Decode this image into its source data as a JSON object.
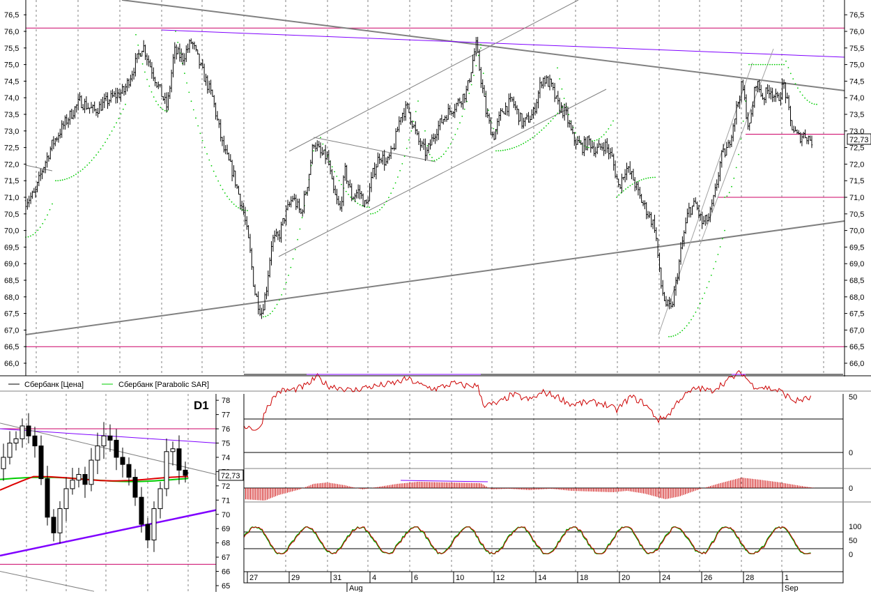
{
  "window": {
    "timeframe": "D1",
    "current_price_label": "72,73",
    "mini_price_label": "72,73"
  },
  "legend": [
    {
      "label": "Сбербанк [Цена]",
      "color": "#000000"
    },
    {
      "label": "Сбербанк [Parabolic SAR]",
      "color": "#00cc00"
    }
  ],
  "colors": {
    "grid": "#808080",
    "magenta_line": "#cc0066",
    "purple_line": "#7f00ff",
    "trend_line": "#808080",
    "sar": "#00cc00",
    "rsi": "#cc0000",
    "macd": "#cc0000",
    "stoch_k": "#00aa00",
    "stoch_d": "#cc0000",
    "ma_green": "#00cc00",
    "ma_red": "#dd0000"
  },
  "chart_data": [
    {
      "type": "candlestick",
      "title": "",
      "ylabel": "",
      "ylim": [
        65.5,
        77.0
      ],
      "y_ticks": [
        "66,0",
        "66,5",
        "67,0",
        "67,5",
        "68,0",
        "68,5",
        "69,0",
        "69,5",
        "70,0",
        "70,5",
        "71,0",
        "71,5",
        "72,0",
        "72,5",
        "73,0",
        "73,5",
        "74,0",
        "74,5",
        "75,0",
        "75,5",
        "76,0",
        "76,5"
      ],
      "horizontal_levels": [
        76.1,
        66.5
      ],
      "series": [
        {
          "name": "Сбербанк [Цена]",
          "x": [
            "27",
            "28",
            "29",
            "30",
            "31",
            "3",
            "4",
            "5",
            "6",
            "7",
            "10",
            "11",
            "12",
            "13",
            "14",
            "17",
            "18",
            "19",
            "20",
            "21",
            "24",
            "25",
            "26",
            "27",
            "28",
            "31",
            "1",
            "2"
          ],
          "close": [
            71.0,
            72.5,
            74.0,
            75.5,
            75.2,
            73.0,
            69.5,
            68.0,
            70.8,
            72.3,
            71.0,
            72.2,
            73.8,
            73.0,
            74.5,
            75.2,
            73.2,
            74.5,
            74.0,
            72.7,
            72.5,
            71.5,
            69.8,
            67.8,
            70.5,
            73.8,
            74.2,
            72.73
          ]
        },
        {
          "name": "Сбербанк [Parabolic SAR]",
          "x": [
            "27",
            "28",
            "29",
            "30",
            "31",
            "3",
            "4",
            "5",
            "6",
            "7",
            "10",
            "11",
            "12",
            "13",
            "14",
            "17",
            "18",
            "19",
            "20",
            "21",
            "24",
            "25",
            "26",
            "27",
            "28",
            "31",
            "1",
            "2"
          ],
          "values": [
            70.2,
            71.5,
            72.6,
            74.0,
            75.8,
            75.3,
            74.0,
            67.5,
            67.8,
            69.5,
            72.7,
            70.8,
            72.0,
            72.8,
            74.8,
            73.3,
            74.8,
            72.5,
            72.8,
            73.5,
            72.3,
            70.8,
            71.2,
            66.8,
            67.8,
            70.5,
            75.0,
            74.2
          ]
        }
      ]
    },
    {
      "type": "candlestick",
      "title": "D1",
      "ylim": [
        65,
        78
      ],
      "y_ticks": [
        "65",
        "66",
        "67",
        "68",
        "69",
        "70",
        "71",
        "72",
        "73",
        "74",
        "75",
        "76",
        "77",
        "78"
      ],
      "series": [
        {
          "name": "daily",
          "values": [
            76,
            76,
            73,
            70,
            68,
            68.5,
            69,
            70,
            71,
            72,
            73,
            74,
            75,
            75.5,
            74,
            73,
            71,
            70,
            69,
            68,
            71,
            73,
            74,
            72.73
          ]
        }
      ]
    },
    {
      "type": "line",
      "title": "",
      "y_ticks": [
        "0",
        "50"
      ],
      "ylim": [
        0,
        100
      ],
      "levels": [
        30,
        70
      ],
      "series": [
        {
          "name": "RSI",
          "values": [
            35,
            35,
            55,
            60,
            62,
            68,
            62,
            58,
            64,
            70,
            66,
            60,
            54,
            58,
            62,
            50,
            56,
            60,
            50,
            46,
            40,
            32,
            62,
            68,
            74,
            62,
            58,
            50,
            48
          ]
        }
      ]
    },
    {
      "type": "bar",
      "title": "",
      "y_ticks": [
        "0"
      ],
      "series": [
        {
          "name": "MACD",
          "values": [
            -1.2,
            -0.7,
            0.1,
            0.5,
            0.3,
            -0.1,
            0.1,
            0.6,
            0.7,
            0.6,
            0.2,
            0.0,
            -0.1,
            0.1,
            0.2,
            -0.1,
            0.0,
            -0.3,
            -0.2,
            -0.1,
            -0.3,
            -1.0,
            -0.4,
            0.3,
            0.9,
            0.7,
            0.3,
            0.0
          ]
        }
      ]
    },
    {
      "type": "line",
      "title": "",
      "y_ticks": [
        "0",
        "50",
        "100"
      ],
      "ylim": [
        0,
        100
      ],
      "levels": [
        20,
        80
      ],
      "series": [
        {
          "name": "%K",
          "values": [
            10,
            90,
            60,
            15,
            85,
            70,
            40,
            80,
            90,
            20,
            85,
            80,
            15,
            90,
            30,
            85,
            20,
            80,
            60,
            10,
            85,
            30,
            90,
            15,
            80,
            60,
            85,
            10,
            95,
            85,
            20,
            90,
            15,
            30
          ]
        },
        {
          "name": "%D",
          "values": [
            12,
            85,
            62,
            18,
            80,
            72,
            42,
            78,
            88,
            22,
            82,
            78,
            18,
            86,
            33,
            82,
            23,
            78,
            58,
            13,
            82,
            33,
            86,
            18,
            78,
            60,
            82,
            13,
            90,
            82,
            23,
            86,
            18,
            30
          ]
        }
      ]
    }
  ],
  "x_axis": {
    "day_labels": [
      "27",
      "29",
      "31",
      "4",
      "6",
      "10",
      "12",
      "14",
      "18",
      "20",
      "24",
      "26",
      "28",
      "1"
    ],
    "month_labels": [
      "Aug",
      "Sep"
    ]
  }
}
